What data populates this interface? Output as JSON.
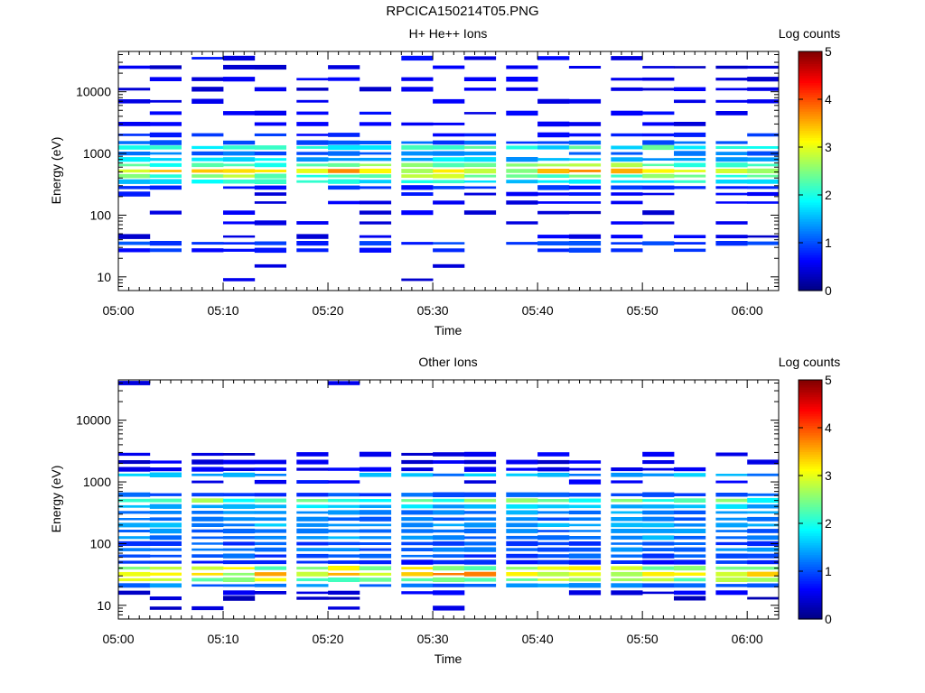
{
  "figure_title": "RPCICA150214T05.PNG",
  "colors": {
    "background": "#ffffff",
    "colormap": "jet",
    "axis": "#000000"
  },
  "chart_data": [
    {
      "type": "heatmap",
      "title": "H+ He++ Ions",
      "xlabel": "Time",
      "ylabel": "Energy (eV)",
      "y_scale": "log",
      "ylim": [
        6,
        45000
      ],
      "xlim": [
        "05:00",
        "06:03"
      ],
      "x_tick_labels": [
        "05:00",
        "05:10",
        "05:20",
        "05:30",
        "05:40",
        "05:50",
        "06:00"
      ],
      "y_tick_labels": [
        "10",
        "100",
        "1000",
        "10000"
      ],
      "colorbar": {
        "label": "Log counts",
        "range": [
          0,
          5
        ],
        "tick_labels": [
          "0",
          "1",
          "2",
          "3",
          "4",
          "5"
        ]
      },
      "time_bins": [
        "05:00",
        "05:03",
        "05:07",
        "05:10",
        "05:13",
        "05:17",
        "05:20",
        "05:23",
        "05:27",
        "05:30",
        "05:33",
        "05:37",
        "05:40",
        "05:43",
        "05:47",
        "05:50",
        "05:53",
        "05:57",
        "06:00"
      ],
      "bands": [
        {
          "energy_eV": 35000,
          "value": 0.6,
          "coverage": 0.4
        },
        {
          "energy_eV": 25000,
          "value": 0.5,
          "coverage": 0.55
        },
        {
          "energy_eV": 16000,
          "value": 0.5,
          "coverage": 0.6
        },
        {
          "energy_eV": 11000,
          "value": 0.5,
          "coverage": 0.55
        },
        {
          "energy_eV": 7000,
          "value": 0.5,
          "coverage": 0.55
        },
        {
          "energy_eV": 4500,
          "value": 0.6,
          "coverage": 0.6
        },
        {
          "energy_eV": 3000,
          "value": 0.6,
          "coverage": 0.65
        },
        {
          "energy_eV": 2000,
          "value": 0.8,
          "coverage": 0.7
        },
        {
          "energy_eV": 1500,
          "value": 1.0,
          "coverage": 0.85
        },
        {
          "energy_eV": 1250,
          "value": 2.0,
          "coverage": 1.0
        },
        {
          "energy_eV": 1000,
          "value": 1.2,
          "coverage": 0.9
        },
        {
          "energy_eV": 800,
          "value": 1.6,
          "coverage": 1.0
        },
        {
          "energy_eV": 650,
          "value": 2.4,
          "coverage": 1.0
        },
        {
          "energy_eV": 520,
          "value": 3.1,
          "coverage": 1.0
        },
        {
          "energy_eV": 430,
          "value": 2.5,
          "coverage": 1.0
        },
        {
          "energy_eV": 350,
          "value": 1.8,
          "coverage": 1.0
        },
        {
          "energy_eV": 280,
          "value": 0.8,
          "coverage": 0.75
        },
        {
          "energy_eV": 220,
          "value": 0.6,
          "coverage": 0.6
        },
        {
          "energy_eV": 160,
          "value": 0.6,
          "coverage": 0.5
        },
        {
          "energy_eV": 110,
          "value": 0.5,
          "coverage": 0.4
        },
        {
          "energy_eV": 75,
          "value": 0.5,
          "coverage": 0.35
        },
        {
          "energy_eV": 45,
          "value": 0.5,
          "coverage": 0.45
        },
        {
          "energy_eV": 35,
          "value": 0.9,
          "coverage": 0.9
        },
        {
          "energy_eV": 27,
          "value": 0.8,
          "coverage": 0.45
        },
        {
          "energy_eV": 15,
          "value": 0.4,
          "coverage": 0.15
        },
        {
          "energy_eV": 9,
          "value": 0.4,
          "coverage": 0.12
        }
      ]
    },
    {
      "type": "heatmap",
      "title": "Other Ions",
      "xlabel": "Time",
      "ylabel": "Energy (eV)",
      "y_scale": "log",
      "ylim": [
        6,
        45000
      ],
      "xlim": [
        "05:00",
        "06:03"
      ],
      "x_tick_labels": [
        "05:00",
        "05:10",
        "05:20",
        "05:30",
        "05:40",
        "05:50",
        "06:00"
      ],
      "y_tick_labels": [
        "10",
        "100",
        "1000",
        "10000"
      ],
      "colorbar": {
        "label": "Log counts",
        "range": [
          0,
          5
        ],
        "tick_labels": [
          "0",
          "1",
          "2",
          "3",
          "4",
          "5"
        ]
      },
      "time_bins": [
        "05:00",
        "05:03",
        "05:07",
        "05:10",
        "05:13",
        "05:17",
        "05:20",
        "05:23",
        "05:27",
        "05:30",
        "05:33",
        "05:37",
        "05:40",
        "05:43",
        "05:47",
        "05:50",
        "05:53",
        "05:57",
        "06:00"
      ],
      "bands": [
        {
          "energy_eV": 40000,
          "value": 0.4,
          "coverage": 0.06
        },
        {
          "energy_eV": 2800,
          "value": 0.5,
          "coverage": 0.5
        },
        {
          "energy_eV": 2100,
          "value": 0.5,
          "coverage": 0.7
        },
        {
          "energy_eV": 1600,
          "value": 0.6,
          "coverage": 0.75
        },
        {
          "energy_eV": 1300,
          "value": 1.4,
          "coverage": 0.85
        },
        {
          "energy_eV": 1000,
          "value": 0.6,
          "coverage": 0.4
        },
        {
          "energy_eV": 620,
          "value": 1.0,
          "coverage": 1.0
        },
        {
          "energy_eV": 500,
          "value": 2.3,
          "coverage": 1.0
        },
        {
          "energy_eV": 400,
          "value": 1.6,
          "coverage": 1.0
        },
        {
          "energy_eV": 320,
          "value": 1.3,
          "coverage": 1.0
        },
        {
          "energy_eV": 250,
          "value": 1.2,
          "coverage": 1.0
        },
        {
          "energy_eV": 200,
          "value": 1.4,
          "coverage": 1.0
        },
        {
          "energy_eV": 160,
          "value": 1.2,
          "coverage": 1.0
        },
        {
          "energy_eV": 125,
          "value": 1.3,
          "coverage": 1.0
        },
        {
          "energy_eV": 100,
          "value": 1.0,
          "coverage": 1.0
        },
        {
          "energy_eV": 80,
          "value": 1.2,
          "coverage": 1.0
        },
        {
          "energy_eV": 63,
          "value": 1.0,
          "coverage": 1.0
        },
        {
          "energy_eV": 50,
          "value": 0.8,
          "coverage": 1.0
        },
        {
          "energy_eV": 40,
          "value": 2.7,
          "coverage": 1.0
        },
        {
          "energy_eV": 32,
          "value": 3.2,
          "coverage": 1.0
        },
        {
          "energy_eV": 26,
          "value": 2.6,
          "coverage": 1.0
        },
        {
          "energy_eV": 21,
          "value": 1.2,
          "coverage": 0.95
        },
        {
          "energy_eV": 16,
          "value": 0.5,
          "coverage": 0.55
        },
        {
          "energy_eV": 13,
          "value": 0.4,
          "coverage": 0.35
        },
        {
          "energy_eV": 9,
          "value": 0.4,
          "coverage": 0.35
        }
      ]
    }
  ]
}
